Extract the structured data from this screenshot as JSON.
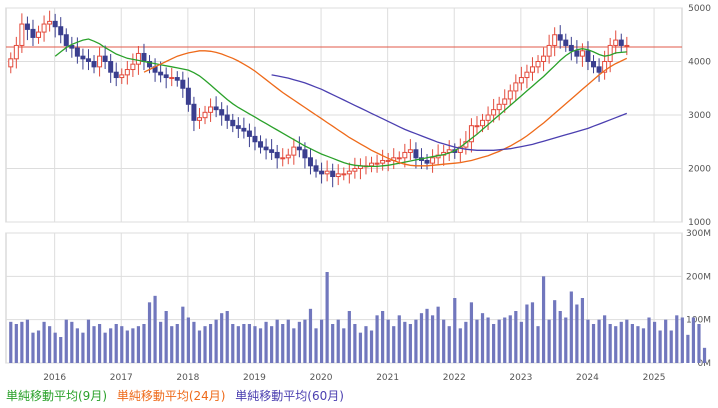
{
  "chart_data": {
    "type": "candlestick",
    "x_labels": [
      "2016",
      "2017",
      "2018",
      "2019",
      "2020",
      "2021",
      "2022",
      "2023",
      "2024",
      "2025"
    ],
    "price_ticks": [
      1000,
      2000,
      3000,
      4000,
      5000
    ],
    "price_ylim": [
      1000,
      5000
    ],
    "volume_ticks": [
      "0M",
      "100M",
      "200M",
      "300M"
    ],
    "volume_ylim": [
      0,
      300
    ],
    "reference_line": 4270,
    "grid": true,
    "colors": {
      "up": "#e34b3c",
      "down": "#3b3f8f",
      "ma9": "#2aa12a",
      "ma24": "#ee6a1a",
      "ma60": "#4b3fb0",
      "volume": "#7177bd",
      "reference": "#e05a4a"
    },
    "candles_monthly_close": [
      4050,
      4300,
      4700,
      4600,
      4450,
      4550,
      4700,
      4750,
      4650,
      4500,
      4300,
      4250,
      4100,
      4050,
      4000,
      3900,
      4100,
      4000,
      3800,
      3700,
      3750,
      3850,
      3950,
      4150,
      4000,
      3900,
      3800,
      3750,
      3700,
      3700,
      3650,
      3500,
      3200,
      2900,
      2950,
      3050,
      3150,
      3100,
      3000,
      2900,
      2800,
      2750,
      2700,
      2600,
      2500,
      2400,
      2350,
      2300,
      2200,
      2200,
      2250,
      2400,
      2350,
      2200,
      2050,
      1950,
      1900,
      1950,
      1850,
      1900,
      1900,
      1950,
      2000,
      2050,
      2050,
      2100,
      2100,
      2150,
      2150,
      2200,
      2200,
      2300,
      2350,
      2200,
      2150,
      2100,
      2200,
      2250,
      2300,
      2350,
      2300,
      2400,
      2500,
      2800,
      2800,
      2900,
      3000,
      3100,
      3200,
      3300,
      3450,
      3600,
      3700,
      3800,
      3900,
      4000,
      4100,
      4300,
      4500,
      4400,
      4300,
      4200,
      4100,
      4200,
      4000,
      3900,
      3800,
      4000,
      4300,
      4400,
      4300,
      4300
    ],
    "volume_monthly": [
      95,
      90,
      95,
      100,
      70,
      75,
      95,
      85,
      70,
      60,
      100,
      95,
      80,
      70,
      100,
      85,
      90,
      70,
      80,
      90,
      85,
      75,
      80,
      85,
      90,
      140,
      155,
      95,
      120,
      85,
      90,
      130,
      105,
      95,
      75,
      85,
      90,
      100,
      115,
      120,
      90,
      85,
      90,
      90,
      85,
      80,
      95,
      85,
      100,
      90,
      100,
      80,
      95,
      100,
      125,
      80,
      100,
      210,
      90,
      100,
      80,
      120,
      90,
      70,
      85,
      75,
      110,
      120,
      100,
      85,
      110,
      95,
      90,
      100,
      115,
      125,
      110,
      130,
      100,
      85,
      150,
      80,
      95,
      140,
      100,
      115,
      105,
      90,
      100,
      105,
      110,
      120,
      95,
      135,
      140,
      85,
      200,
      100,
      145,
      120,
      105,
      165,
      135,
      150,
      100,
      90,
      100,
      110,
      90,
      85,
      95,
      100,
      90,
      85,
      80,
      105,
      95,
      75,
      100,
      75,
      110,
      105,
      65,
      105,
      90,
      35
    ],
    "ma9": [
      4100,
      4180,
      4260,
      4320,
      4360,
      4400,
      4420,
      4380,
      4330,
      4260,
      4200,
      4140,
      4100,
      4060,
      4040,
      4020,
      4000,
      3980,
      3960,
      3940,
      3920,
      3900,
      3880,
      3860,
      3840,
      3790,
      3730,
      3650,
      3560,
      3470,
      3380,
      3290,
      3210,
      3140,
      3080,
      3020,
      2960,
      2900,
      2840,
      2780,
      2720,
      2660,
      2600,
      2540,
      2480,
      2420,
      2370,
      2320,
      2270,
      2230,
      2190,
      2150,
      2110,
      2080,
      2060,
      2050,
      2040,
      2040,
      2040,
      2050,
      2060,
      2080,
      2100,
      2120,
      2140,
      2160,
      2180,
      2200,
      2220,
      2240,
      2260,
      2290,
      2330,
      2400,
      2480,
      2560,
      2640,
      2730,
      2820,
      2910,
      3000,
      3090,
      3180,
      3270,
      3360,
      3450,
      3540,
      3630,
      3720,
      3820,
      3920,
      4020,
      4110,
      4180,
      4220,
      4240,
      4220,
      4180,
      4130,
      4100,
      4120,
      4160,
      4170,
      4180
    ],
    "ma24": [
      3800,
      3850,
      3900,
      3950,
      4000,
      4050,
      4100,
      4130,
      4160,
      4180,
      4200,
      4200,
      4190,
      4170,
      4140,
      4100,
      4060,
      4010,
      3950,
      3890,
      3820,
      3740,
      3660,
      3580,
      3500,
      3420,
      3350,
      3280,
      3210,
      3140,
      3070,
      3000,
      2930,
      2860,
      2790,
      2720,
      2650,
      2580,
      2520,
      2460,
      2400,
      2340,
      2290,
      2240,
      2190,
      2150,
      2110,
      2080,
      2060,
      2050,
      2050,
      2050,
      2060,
      2070,
      2080,
      2090,
      2100,
      2110,
      2130,
      2150,
      2180,
      2210,
      2240,
      2280,
      2320,
      2370,
      2420,
      2480,
      2540,
      2610,
      2690,
      2770,
      2850,
      2940,
      3030,
      3120,
      3210,
      3300,
      3390,
      3480,
      3570,
      3660,
      3750,
      3830,
      3900,
      3960,
      4010,
      4060
    ],
    "ma60": [
      3750,
      3730,
      3710,
      3690,
      3660,
      3630,
      3600,
      3560,
      3520,
      3480,
      3430,
      3380,
      3330,
      3280,
      3230,
      3180,
      3130,
      3080,
      3030,
      2980,
      2930,
      2880,
      2830,
      2780,
      2730,
      2690,
      2650,
      2610,
      2570,
      2530,
      2490,
      2460,
      2430,
      2400,
      2380,
      2360,
      2350,
      2340,
      2340,
      2340,
      2340,
      2350,
      2360,
      2370,
      2390,
      2410,
      2430,
      2450,
      2480,
      2510,
      2540,
      2570,
      2600,
      2630,
      2660,
      2690,
      2720,
      2750,
      2790,
      2830,
      2870,
      2910,
      2950,
      2990,
      3030
    ]
  },
  "legend": [
    {
      "label": "単純移動平均(9月)",
      "color": "#2aa12a"
    },
    {
      "label": "単純移動平均(24月)",
      "color": "#ee6a1a"
    },
    {
      "label": "単純移動平均(60月)",
      "color": "#4b3fb0"
    }
  ]
}
